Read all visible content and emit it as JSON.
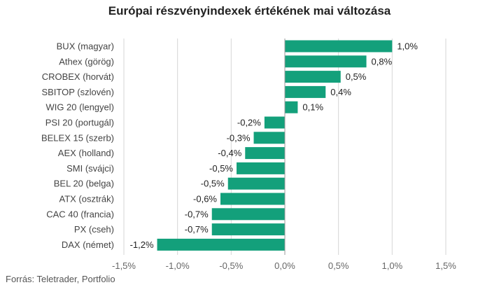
{
  "chart_data": {
    "type": "bar",
    "orientation": "horizontal",
    "title": "Európai részvényindexek értékének mai változása",
    "categories": [
      "BUX (magyar)",
      "Athex (görög)",
      "CROBEX (horvát)",
      "SBITOP (szlovén)",
      "WIG 20 (lengyel)",
      "PSI 20 (portugál)",
      "BELEX 15 (szerb)",
      "AEX (holland)",
      "SMI (svájci)",
      "BEL 20 (belga)",
      "ATX (osztrák)",
      "CAC 40 (francia)",
      "PX (cseh)",
      "DAX (német)"
    ],
    "values": [
      1.0,
      0.76,
      0.52,
      0.38,
      0.12,
      -0.19,
      -0.29,
      -0.37,
      -0.45,
      -0.53,
      -0.6,
      -0.68,
      -0.68,
      -1.19
    ],
    "value_labels": [
      "1,0%",
      "0,8%",
      "0,5%",
      "0,4%",
      "0,1%",
      "-0,2%",
      "-0,3%",
      "-0,4%",
      "-0,5%",
      "-0,5%",
      "-0,6%",
      "-0,7%",
      "-0,7%",
      "-1,2%"
    ],
    "xlim": [
      -1.5,
      1.5
    ],
    "xticks": [
      -1.5,
      -1.0,
      -0.5,
      0.0,
      0.5,
      1.0,
      1.5
    ],
    "xtick_labels": [
      "-1,5%",
      "-1,0%",
      "-0,5%",
      "0,0%",
      "0,5%",
      "1,0%",
      "1,5%"
    ],
    "grid": true,
    "bar_color": "#13a07b",
    "source": "Forrás: Teletrader, Portfolio"
  }
}
